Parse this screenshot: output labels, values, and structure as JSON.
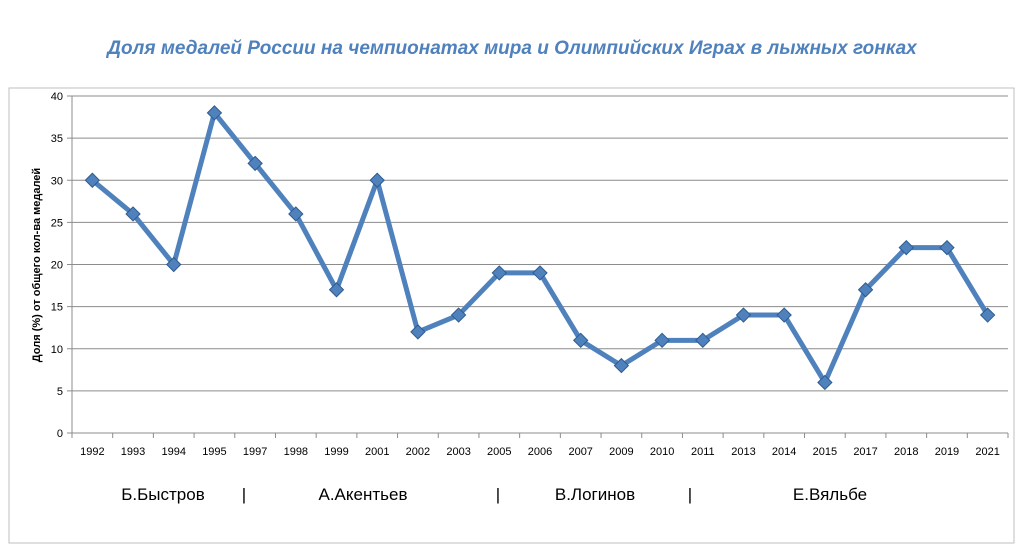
{
  "chart_data": {
    "type": "line",
    "title": "Доля медалей России на чемпионатах мира и Олимпийских Играх в лыжных гонках",
    "ylabel": "Доля (%) от  общего кол-ва медалей",
    "xlabel": "",
    "ylim": [
      0,
      40
    ],
    "yticks": [
      "0",
      "5",
      "10",
      "15",
      "20",
      "25",
      "30",
      "35",
      "40"
    ],
    "grid": true,
    "categories": [
      "1992",
      "1993",
      "1994",
      "1995",
      "1997",
      "1998",
      "1999",
      "2001",
      "2002",
      "2003",
      "2005",
      "2006",
      "2007",
      "2009",
      "2010",
      "2011",
      "2013",
      "2014",
      "2015",
      "2017",
      "2018",
      "2019",
      "2021"
    ],
    "series": [
      {
        "values": [
          30,
          26,
          20,
          38,
          32,
          26,
          17,
          30,
          12,
          14,
          19,
          19,
          11,
          8,
          11,
          11,
          14,
          14,
          6,
          17,
          22,
          22,
          14
        ]
      }
    ],
    "series_color": "#4f81bd",
    "annotations": {
      "coaches": [
        "Б.Быстров",
        "А.Акентьев",
        "В.Логинов",
        "Е.Вяльбе"
      ],
      "separators": [
        "|",
        "|",
        "|"
      ]
    }
  }
}
